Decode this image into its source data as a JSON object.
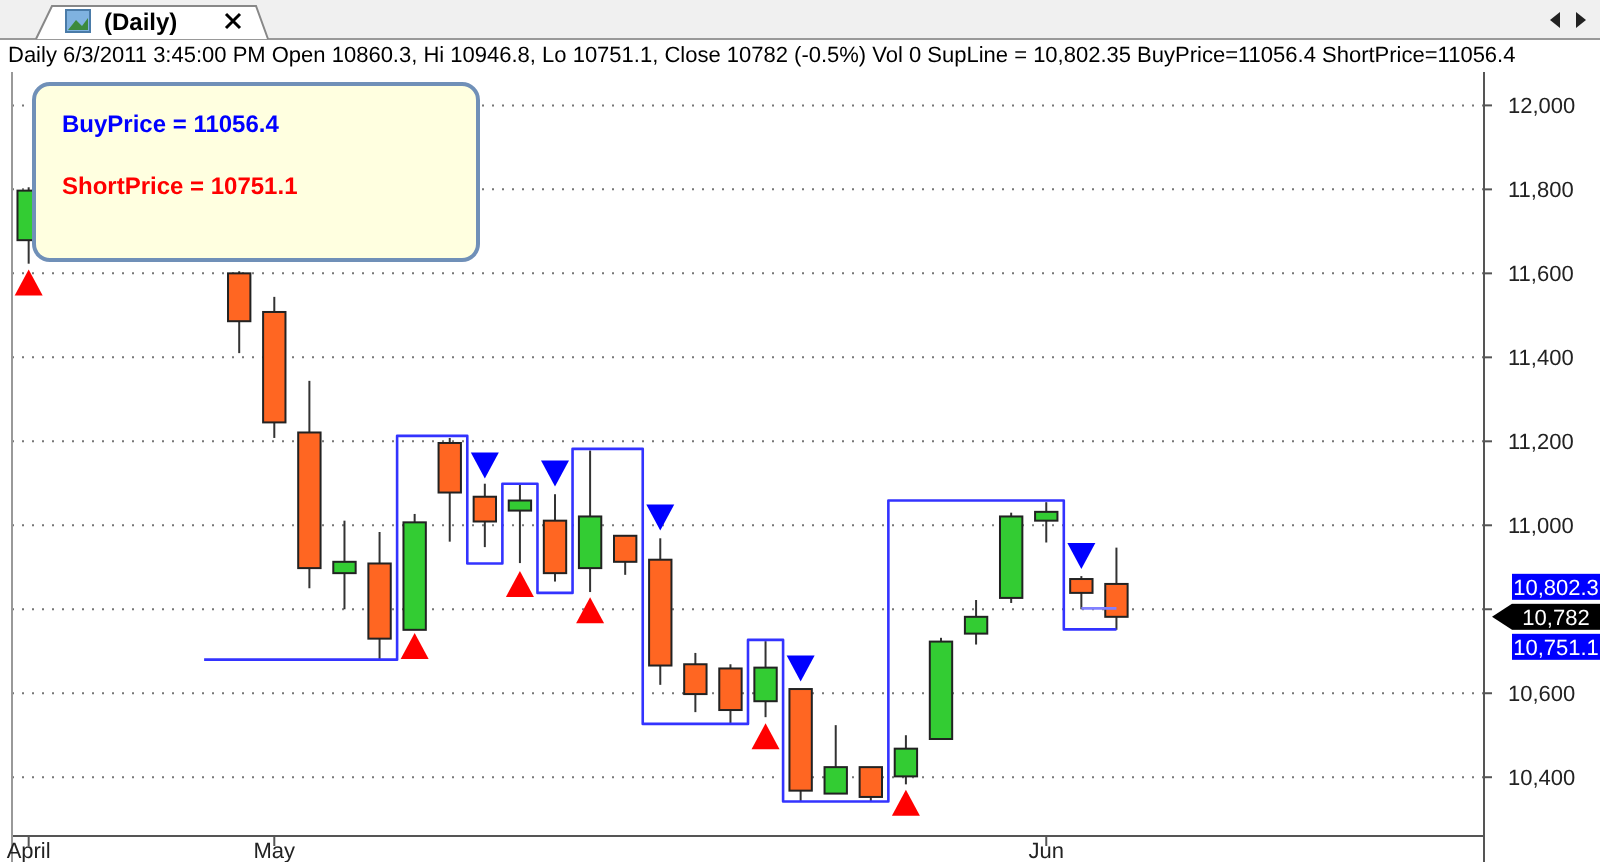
{
  "chart_data": {
    "type": "candlestick",
    "title": "Daily 6/3/2011 3:45:00 PM Open 10860.3, Hi 10946.8, Lo 10751.1, Close 10782 (-0.5%) Vol 0 SupLine = 10,802.35 BuyPrice=11056.4 ShortPrice=11056.4",
    "subtitle": "(Daily)",
    "categories": [
      "April",
      null,
      null,
      null,
      null,
      null,
      null,
      "May",
      null,
      null,
      null,
      null,
      null,
      null,
      null,
      null,
      null,
      null,
      null,
      null,
      null,
      null,
      null,
      null,
      null,
      null,
      null,
      null,
      null,
      "Jun",
      null,
      null,
      null,
      null,
      null,
      null,
      null,
      null,
      null,
      null,
      null,
      null
    ],
    "ohlc": [
      [
        11679,
        11805,
        11623,
        11797
      ],
      null,
      null,
      null,
      null,
      null,
      [
        11600,
        11605,
        11410,
        11486
      ],
      [
        11508,
        11544,
        11208,
        11245
      ],
      [
        11221,
        11344,
        10850,
        10898
      ],
      [
        10886,
        11011,
        10800,
        10913
      ],
      [
        10909,
        10984,
        10681,
        10730
      ],
      [
        10751,
        11027,
        10751,
        11007
      ],
      [
        11196,
        11208,
        10961,
        11078
      ],
      [
        11068,
        11099,
        10948,
        11009
      ],
      [
        11035,
        11099,
        10910,
        11059
      ],
      [
        11011,
        11074,
        10866,
        10886
      ],
      [
        10898,
        11178,
        10841,
        11021
      ],
      [
        10975,
        10975,
        10882,
        10913
      ],
      [
        10918,
        10969,
        10620,
        10666
      ],
      [
        10669,
        10696,
        10555,
        10598
      ],
      [
        10659,
        10669,
        10525,
        10560
      ],
      [
        10581,
        10724,
        10543,
        10661
      ],
      [
        10610,
        10610,
        10342,
        10368
      ],
      [
        10361,
        10524,
        10361,
        10424
      ],
      [
        10424,
        10424,
        10342,
        10353
      ],
      [
        10402,
        10500,
        10383,
        10468
      ],
      [
        10491,
        10732,
        10491,
        10723
      ],
      [
        10742,
        10822,
        10716,
        10782
      ],
      [
        10827,
        11030,
        10815,
        11021
      ],
      [
        11011,
        11055,
        10959,
        11032
      ],
      [
        10872,
        10879,
        10800,
        10839
      ],
      [
        10860.3,
        10946.8,
        10751.1,
        10782
      ],
      null,
      null,
      null,
      null,
      null,
      null,
      null,
      null,
      null,
      null
    ],
    "colors": [
      "#33cc33",
      null,
      null,
      null,
      null,
      null,
      "#ff6622",
      "#ff6622",
      "#ff6622",
      "#33cc33",
      "#ff6622",
      "#33cc33",
      "#ff6622",
      "#ff6622",
      "#33cc33",
      "#ff6622",
      "#33cc33",
      "#ff6622",
      "#ff6622",
      "#ff6622",
      "#ff6622",
      "#33cc33",
      "#ff6622",
      "#33cc33",
      "#ff6622",
      "#33cc33",
      "#33cc33",
      "#33cc33",
      "#33cc33",
      "#33cc33",
      "#ff6622",
      "#ff6622",
      null,
      null,
      null,
      null,
      null,
      null,
      null,
      null,
      null,
      null
    ],
    "series": [
      {
        "type": "step",
        "color": "#3333ff",
        "values": [
          null,
          null,
          null,
          null,
          null,
          10680,
          10680,
          10680,
          10680,
          10680,
          10680,
          11213,
          11213,
          10909,
          11099,
          10839,
          11182,
          11182,
          10527,
          10527,
          10527,
          10727,
          10342,
          10342,
          10342,
          11059,
          11059,
          11059,
          11059,
          11059,
          10752,
          10752,
          null,
          null,
          null,
          null,
          null,
          null,
          null,
          null,
          null,
          null
        ]
      },
      {
        "type": "step",
        "color": "#8080ff",
        "values": [
          null,
          null,
          null,
          null,
          null,
          null,
          null,
          null,
          null,
          null,
          null,
          null,
          null,
          null,
          null,
          null,
          null,
          null,
          null,
          null,
          null,
          null,
          null,
          null,
          null,
          null,
          null,
          null,
          null,
          null,
          10802,
          10802,
          null,
          null,
          null,
          null,
          null,
          null,
          null,
          null,
          null,
          null
        ]
      },
      {
        "type": "scatter",
        "marker": "triangle",
        "color": "#ff0000",
        "values": [
          11576,
          null,
          null,
          null,
          null,
          null,
          null,
          null,
          null,
          null,
          null,
          10710,
          null,
          null,
          10858,
          null,
          10795,
          null,
          null,
          null,
          null,
          10495,
          null,
          null,
          null,
          10337,
          null,
          null,
          null,
          null,
          null,
          null,
          null,
          null,
          null,
          null,
          null,
          null,
          null,
          null,
          null,
          null
        ]
      },
      {
        "type": "scatter",
        "marker": "triangle-down",
        "color": "#0000ff",
        "values": [
          null,
          null,
          null,
          null,
          null,
          null,
          null,
          null,
          null,
          null,
          null,
          null,
          null,
          11145,
          null,
          11126,
          null,
          null,
          11021,
          null,
          null,
          null,
          10661,
          null,
          null,
          null,
          null,
          null,
          null,
          null,
          10929,
          null,
          null,
          null,
          null,
          null,
          null,
          null,
          null,
          null,
          null,
          null
        ]
      }
    ],
    "ylim": [
      10260,
      12070
    ],
    "yticks": [
      {
        "value": 10400,
        "label": "10,400"
      },
      {
        "value": 10600,
        "label": "10,600"
      },
      {
        "value": 10800,
        "label": null
      },
      {
        "value": 11000,
        "label": "11,000"
      },
      {
        "value": 11200,
        "label": "11,200"
      },
      {
        "value": 11400,
        "label": "11,400"
      },
      {
        "value": 11600,
        "label": "11,600"
      },
      {
        "value": 11800,
        "label": "11,800"
      },
      {
        "value": 12000,
        "label": "12,000"
      }
    ],
    "grid": "y",
    "annotations": [
      "BuyPrice = 11056.4",
      "ShortPrice = 10751.1",
      "10,802.3",
      "10,782",
      "10,751.1"
    ]
  }
}
